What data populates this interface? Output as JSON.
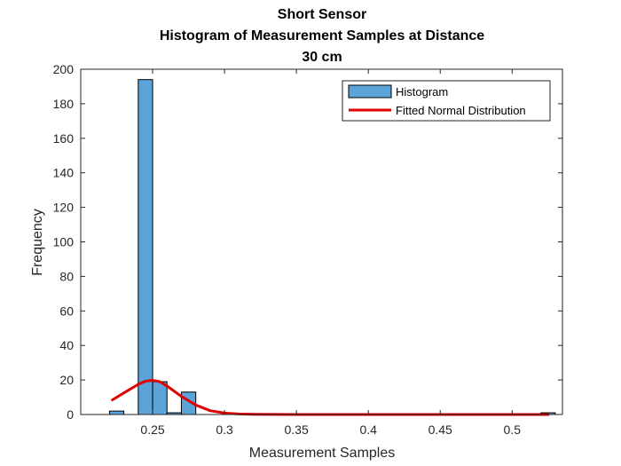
{
  "chart_data": {
    "type": "bar",
    "title_lines": [
      "Short Sensor",
      "Histogram of Measurement Samples at Distance",
      "30 cm"
    ],
    "xlabel": "Measurement Samples",
    "ylabel": "Frequency",
    "xlim": [
      0.2,
      0.535
    ],
    "ylim": [
      0,
      200
    ],
    "xticks": [
      0.25,
      0.3,
      0.35,
      0.4,
      0.45,
      0.5
    ],
    "xtick_labels": [
      "0.25",
      "0.3",
      "0.35",
      "0.4",
      "0.45",
      "0.5"
    ],
    "yticks": [
      0,
      20,
      40,
      60,
      80,
      100,
      120,
      140,
      160,
      180,
      200
    ],
    "ytick_labels": [
      "0",
      "20",
      "40",
      "60",
      "80",
      "100",
      "120",
      "140",
      "160",
      "180",
      "200"
    ],
    "histogram": {
      "name": "Histogram",
      "color": "#5BA3D9",
      "bin_edges": [
        0.22,
        0.23,
        0.24,
        0.25,
        0.26,
        0.27,
        0.28
      ],
      "counts": [
        2,
        0,
        194,
        19,
        1,
        13
      ]
    },
    "outlier_bar": {
      "x0": 0.52,
      "x1": 0.53,
      "count": 1
    },
    "fitted_normal": {
      "name": "Fitted Normal Distribution",
      "color": "#E00000",
      "x": [
        0.222,
        0.23,
        0.24,
        0.245,
        0.25,
        0.255,
        0.26,
        0.27,
        0.28,
        0.29,
        0.3,
        0.31,
        0.32,
        0.35,
        0.4,
        0.45,
        0.5,
        0.525
      ],
      "y": [
        8.5,
        12.5,
        17.5,
        19.3,
        19.8,
        19.0,
        16.5,
        10.5,
        5.5,
        2.2,
        0.8,
        0.3,
        0.1,
        0,
        0,
        0,
        0,
        0
      ]
    },
    "legend": {
      "position": "top-right",
      "entries": [
        "Histogram",
        "Fitted Normal Distribution"
      ]
    },
    "grid": false
  }
}
